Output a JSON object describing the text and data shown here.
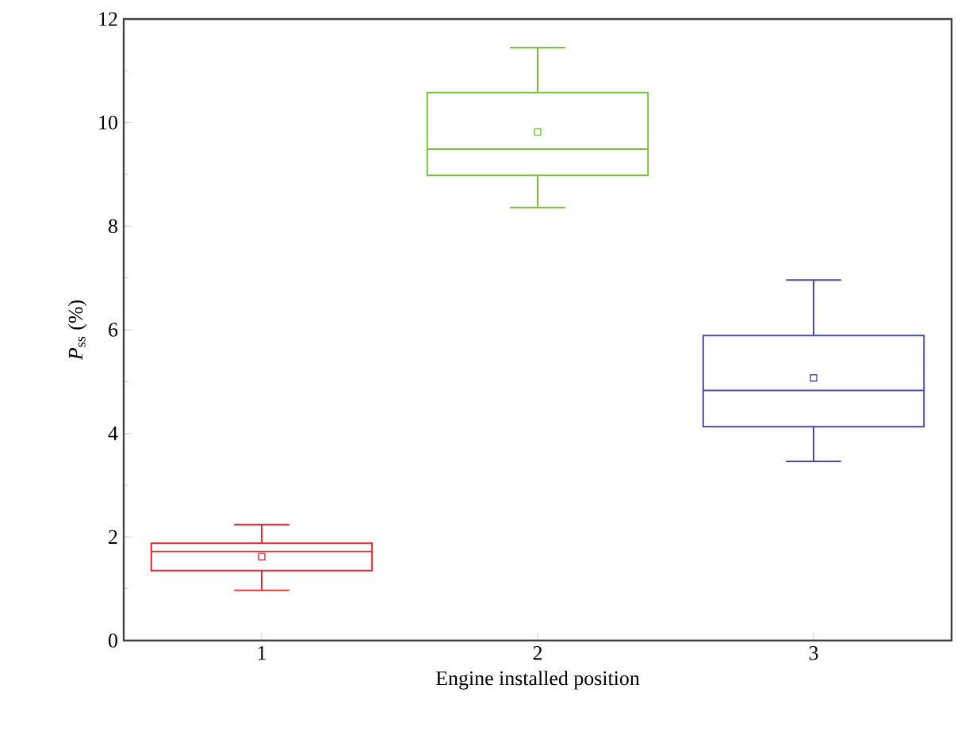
{
  "chart_data": {
    "type": "box",
    "categories": [
      "1",
      "2",
      "3"
    ],
    "xlabel": "Engine installed position",
    "ylabel": "*P*$_{ss}$ (%)",
    "ylim": [
      0,
      12
    ],
    "yticks": [
      0,
      2,
      4,
      6,
      8,
      10,
      12
    ],
    "colors": [
      "#e8262b",
      "#7cbf3a",
      "#4a4d9c"
    ],
    "marker": "square",
    "boxes": [
      {
        "low": 0.97,
        "q1": 1.35,
        "median": 1.72,
        "q3": 1.88,
        "high": 2.24,
        "mean": 1.62
      },
      {
        "low": 8.36,
        "q1": 8.98,
        "median": 9.49,
        "q3": 10.58,
        "high": 11.45,
        "mean": 9.82
      },
      {
        "low": 3.46,
        "q1": 4.13,
        "median": 4.83,
        "q3": 5.89,
        "high": 6.96,
        "mean": 5.07
      }
    ]
  }
}
